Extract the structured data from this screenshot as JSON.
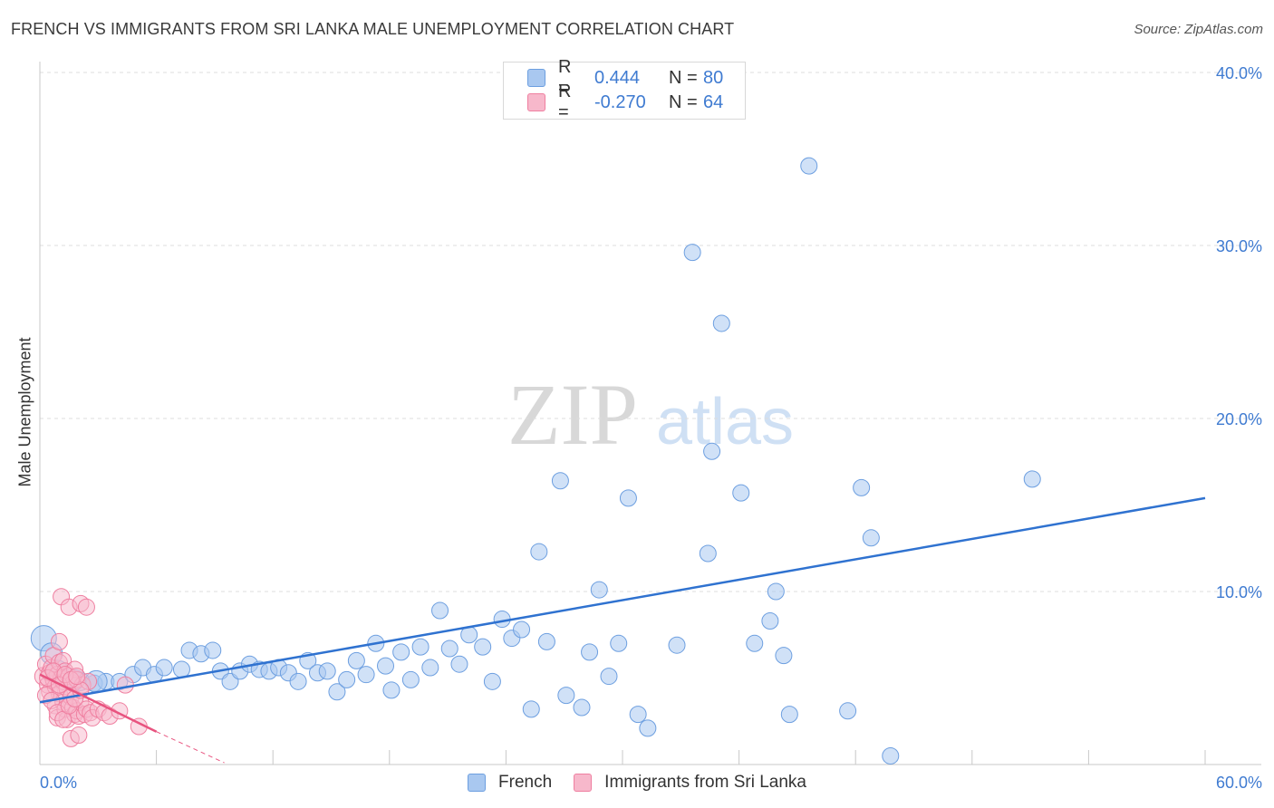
{
  "title": "FRENCH VS IMMIGRANTS FROM SRI LANKA MALE UNEMPLOYMENT CORRELATION CHART",
  "source": "Source: ZipAtlas.com",
  "watermark": {
    "zip": "ZIP",
    "atlas": "atlas"
  },
  "legend": {
    "rows": [
      {
        "r_label": "R =",
        "r_value": "0.444",
        "n_label": "N =",
        "n_value": "80",
        "color": "#a9c8f0"
      },
      {
        "r_label": "R =",
        "r_value": "-0.270",
        "n_label": "N =",
        "n_value": "64",
        "color": "#f7b8cb"
      }
    ]
  },
  "bottom_legend": {
    "french": "French",
    "sri_lanka": "Immigrants from Sri Lanka"
  },
  "chart_data": {
    "type": "scatter",
    "title": "FRENCH VS IMMIGRANTS FROM SRI LANKA MALE UNEMPLOYMENT CORRELATION CHART",
    "xlabel": "",
    "ylabel": "Male Unemployment",
    "xlim": [
      0,
      60
    ],
    "ylim": [
      0,
      40
    ],
    "x_tick_labels": [
      "0.0%",
      "60.0%"
    ],
    "y_ticks": [
      10,
      20,
      30,
      40
    ],
    "y_tick_labels": [
      "10.0%",
      "20.0%",
      "30.0%",
      "40.0%"
    ],
    "x_tick_marks": [
      0,
      6,
      12,
      18,
      24,
      30,
      36,
      42,
      48,
      54,
      60
    ],
    "colors": {
      "french_fill": "#a9c8f0",
      "french_stroke": "#6d9fe0",
      "french_line": "#2f72d0",
      "lanka_fill": "#f7b8cb",
      "lanka_stroke": "#ef7fa0",
      "lanka_line": "#e8537f",
      "axis_label": "#3f7bd1"
    },
    "series": [
      {
        "name": "French",
        "trend": {
          "x": [
            0,
            60
          ],
          "y": [
            3.6,
            15.4
          ]
        },
        "points": [
          [
            0.2,
            7.3,
            14
          ],
          [
            0.6,
            6.4,
            12
          ],
          [
            0.9,
            5.4,
            12
          ],
          [
            1.4,
            5.0,
            11
          ],
          [
            2.1,
            4.8,
            10
          ],
          [
            2.8,
            4.7,
            9
          ],
          [
            3.4,
            4.8,
            9
          ],
          [
            4.1,
            4.8,
            9
          ],
          [
            4.8,
            5.2,
            9
          ],
          [
            5.3,
            5.6,
            9
          ],
          [
            5.9,
            5.2,
            9
          ],
          [
            6.4,
            5.6,
            9
          ],
          [
            7.3,
            5.5,
            9
          ],
          [
            7.7,
            6.6,
            9
          ],
          [
            8.3,
            6.4,
            9
          ],
          [
            8.9,
            6.6,
            9
          ],
          [
            9.3,
            5.4,
            9
          ],
          [
            9.8,
            4.8,
            9
          ],
          [
            10.3,
            5.4,
            9
          ],
          [
            10.8,
            5.8,
            9
          ],
          [
            11.3,
            5.5,
            9
          ],
          [
            11.8,
            5.4,
            9
          ],
          [
            12.3,
            5.6,
            9
          ],
          [
            12.8,
            5.3,
            9
          ],
          [
            13.3,
            4.8,
            9
          ],
          [
            13.8,
            6.0,
            9
          ],
          [
            14.3,
            5.3,
            9
          ],
          [
            14.8,
            5.4,
            9
          ],
          [
            15.3,
            4.2,
            9
          ],
          [
            15.8,
            4.9,
            9
          ],
          [
            16.3,
            6.0,
            9
          ],
          [
            16.8,
            5.2,
            9
          ],
          [
            17.3,
            7.0,
            9
          ],
          [
            17.8,
            5.7,
            9
          ],
          [
            18.1,
            4.3,
            9
          ],
          [
            18.6,
            6.5,
            9
          ],
          [
            19.1,
            4.9,
            9
          ],
          [
            19.6,
            6.8,
            9
          ],
          [
            20.1,
            5.6,
            9
          ],
          [
            20.6,
            8.9,
            9
          ],
          [
            21.1,
            6.7,
            9
          ],
          [
            21.6,
            5.8,
            9
          ],
          [
            22.1,
            7.5,
            9
          ],
          [
            22.8,
            6.8,
            9
          ],
          [
            23.3,
            4.8,
            9
          ],
          [
            23.8,
            8.4,
            9
          ],
          [
            24.3,
            7.3,
            9
          ],
          [
            24.8,
            7.8,
            9
          ],
          [
            25.3,
            3.2,
            9
          ],
          [
            25.7,
            12.3,
            9
          ],
          [
            26.1,
            7.1,
            9
          ],
          [
            26.8,
            16.4,
            9
          ],
          [
            27.1,
            4.0,
            9
          ],
          [
            27.9,
            3.3,
            9
          ],
          [
            28.3,
            6.5,
            9
          ],
          [
            28.8,
            10.1,
            9
          ],
          [
            29.3,
            5.1,
            9
          ],
          [
            29.8,
            7.0,
            9
          ],
          [
            30.3,
            15.4,
            9
          ],
          [
            30.8,
            2.9,
            9
          ],
          [
            31.3,
            2.1,
            9
          ],
          [
            32.8,
            6.9,
            9
          ],
          [
            33.6,
            29.6,
            9
          ],
          [
            34.4,
            12.2,
            9
          ],
          [
            34.6,
            18.1,
            9
          ],
          [
            35.1,
            25.5,
            9
          ],
          [
            36.1,
            15.7,
            9
          ],
          [
            36.8,
            7.0,
            9
          ],
          [
            37.6,
            8.3,
            9
          ],
          [
            37.9,
            10.0,
            9
          ],
          [
            38.3,
            6.3,
            9
          ],
          [
            38.6,
            2.9,
            9
          ],
          [
            39.6,
            34.6,
            9
          ],
          [
            41.6,
            3.1,
            9
          ],
          [
            42.3,
            16.0,
            9
          ],
          [
            42.8,
            13.1,
            9
          ],
          [
            43.8,
            0.5,
            9
          ],
          [
            51.1,
            16.5,
            9
          ],
          [
            2.9,
            4.8,
            12
          ],
          [
            1.8,
            4.9,
            11
          ]
        ]
      },
      {
        "name": "Immigrants from Sri Lanka",
        "trend_solid": {
          "x": [
            0,
            6.0
          ],
          "y": [
            5.2,
            1.9
          ]
        },
        "trend_dashed": {
          "x": [
            6.0,
            9.5
          ],
          "y": [
            1.9,
            0.1
          ]
        },
        "points": [
          [
            0.2,
            5.1,
            10
          ],
          [
            0.3,
            5.8,
            9
          ],
          [
            0.4,
            4.6,
            9
          ],
          [
            0.5,
            5.3,
            9
          ],
          [
            0.5,
            4.2,
            9
          ],
          [
            0.6,
            5.6,
            9
          ],
          [
            0.7,
            4.9,
            9
          ],
          [
            0.7,
            6.3,
            9
          ],
          [
            0.8,
            3.4,
            9
          ],
          [
            0.8,
            4.5,
            9
          ],
          [
            0.9,
            5.2,
            9
          ],
          [
            0.9,
            2.7,
            9
          ],
          [
            1.0,
            7.1,
            9
          ],
          [
            1.0,
            5.9,
            9
          ],
          [
            1.0,
            4.1,
            9
          ],
          [
            1.1,
            5.0,
            9
          ],
          [
            1.1,
            9.7,
            9
          ],
          [
            1.2,
            3.6,
            9
          ],
          [
            1.2,
            4.8,
            9
          ],
          [
            1.2,
            6.0,
            9
          ],
          [
            1.3,
            3.2,
            9
          ],
          [
            1.3,
            5.4,
            9
          ],
          [
            1.4,
            2.6,
            9
          ],
          [
            1.4,
            4.4,
            9
          ],
          [
            1.5,
            5.1,
            9
          ],
          [
            1.5,
            9.1,
            9
          ],
          [
            1.6,
            1.5,
            9
          ],
          [
            1.6,
            3.9,
            9
          ],
          [
            1.7,
            3.3,
            9
          ],
          [
            1.7,
            4.7,
            9
          ],
          [
            1.8,
            5.5,
            9
          ],
          [
            1.8,
            2.9,
            9
          ],
          [
            1.9,
            3.1,
            9
          ],
          [
            1.9,
            4.9,
            9
          ],
          [
            2.0,
            1.7,
            9
          ],
          [
            2.0,
            2.8,
            9
          ],
          [
            2.1,
            3.6,
            9
          ],
          [
            2.1,
            9.3,
            9
          ],
          [
            2.2,
            4.6,
            9
          ],
          [
            2.3,
            2.9,
            9
          ],
          [
            2.4,
            3.2,
            9
          ],
          [
            2.4,
            9.1,
            9
          ],
          [
            2.5,
            4.8,
            9
          ],
          [
            2.6,
            3.0,
            9
          ],
          [
            2.7,
            2.7,
            9
          ],
          [
            3.0,
            3.2,
            9
          ],
          [
            3.3,
            3.0,
            9
          ],
          [
            3.6,
            2.8,
            9
          ],
          [
            4.1,
            3.1,
            9
          ],
          [
            4.4,
            4.6,
            9
          ],
          [
            5.1,
            2.2,
            9
          ],
          [
            0.3,
            4.0,
            9
          ],
          [
            0.6,
            3.7,
            9
          ],
          [
            0.9,
            3.0,
            9
          ],
          [
            1.2,
            2.6,
            9
          ],
          [
            1.5,
            3.4,
            9
          ],
          [
            1.8,
            3.8,
            9
          ],
          [
            2.1,
            4.3,
            9
          ],
          [
            0.4,
            5.0,
            9
          ],
          [
            0.7,
            5.4,
            9
          ],
          [
            1.0,
            4.6,
            9
          ],
          [
            1.3,
            5.2,
            9
          ],
          [
            1.6,
            4.9,
            9
          ],
          [
            1.9,
            5.1,
            9
          ]
        ]
      }
    ]
  }
}
